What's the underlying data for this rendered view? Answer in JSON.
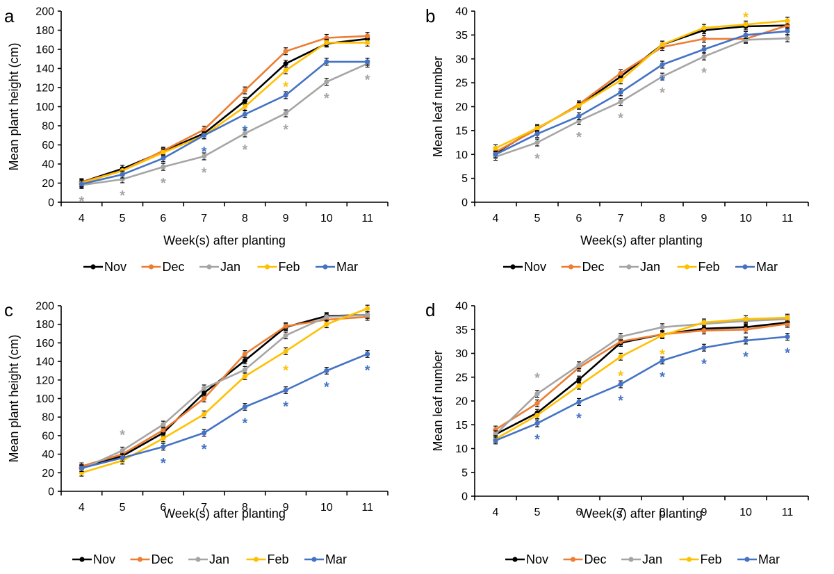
{
  "chart_data": [
    {
      "panel": "a",
      "type": "line",
      "xlabel": "Week(s) after planting",
      "ylabel": "Mean plant height (cm)",
      "categories": [
        "4",
        "5",
        "6",
        "7",
        "8",
        "9",
        "10",
        "11"
      ],
      "ylim": [
        0,
        200
      ],
      "yticks": [
        "0",
        "20",
        "40",
        "60",
        "80",
        "100",
        "120",
        "140",
        "160",
        "180",
        "200"
      ],
      "series": [
        {
          "name": "Nov",
          "color": "#000000",
          "values": [
            21,
            35,
            53,
            72,
            106,
            145,
            166,
            171
          ]
        },
        {
          "name": "Dec",
          "color": "#ED7D31",
          "values": [
            21,
            33,
            54,
            76,
            117,
            158,
            172,
            174
          ]
        },
        {
          "name": "Jan",
          "color": "#A5A5A5",
          "values": [
            18,
            24,
            37,
            48,
            72,
            93,
            126,
            145
          ]
        },
        {
          "name": "Feb",
          "color": "#FFC000",
          "values": [
            20,
            33,
            52,
            70,
            100,
            138,
            167,
            167
          ]
        },
        {
          "name": "Mar",
          "color": "#4472C4",
          "values": [
            19,
            29,
            46,
            70,
            92,
            112,
            147,
            147
          ]
        }
      ],
      "significance": [
        {
          "series": "Jan",
          "category": "4"
        },
        {
          "series": "Jan",
          "category": "5"
        },
        {
          "series": "Jan",
          "category": "6"
        },
        {
          "series": "Jan",
          "category": "7"
        },
        {
          "series": "Jan",
          "category": "8"
        },
        {
          "series": "Jan",
          "category": "9"
        },
        {
          "series": "Jan",
          "category": "10"
        },
        {
          "series": "Jan",
          "category": "11"
        },
        {
          "series": "Mar",
          "category": "7"
        },
        {
          "series": "Mar",
          "category": "8"
        },
        {
          "series": "Feb",
          "category": "9"
        }
      ],
      "significance_symbol": "*",
      "legend": [
        "Nov",
        "Dec",
        "Jan",
        "Feb",
        "Mar"
      ]
    },
    {
      "panel": "b",
      "type": "line",
      "xlabel": "Week(s) after planting",
      "ylabel": "Mean leaf number",
      "categories": [
        "4",
        "5",
        "6",
        "7",
        "8",
        "9",
        "10",
        "11"
      ],
      "ylim": [
        0,
        40
      ],
      "yticks": [
        "0",
        "5",
        "10",
        "15",
        "20",
        "25",
        "30",
        "35",
        "40"
      ],
      "series": [
        {
          "name": "Nov",
          "color": "#000000",
          "values": [
            10.3,
            15.5,
            20.2,
            26.3,
            33.0,
            36.0,
            36.8,
            37.0
          ]
        },
        {
          "name": "Dec",
          "color": "#ED7D31",
          "values": [
            10.5,
            15.3,
            20.5,
            27.0,
            32.5,
            34.2,
            34.2,
            37.0
          ]
        },
        {
          "name": "Jan",
          "color": "#A5A5A5",
          "values": [
            9.5,
            12.5,
            17.0,
            21.0,
            26.3,
            30.5,
            34.0,
            34.3
          ]
        },
        {
          "name": "Feb",
          "color": "#FFC000",
          "values": [
            11.3,
            15.5,
            20.2,
            25.5,
            33.0,
            36.5,
            37.2,
            38.0
          ]
        },
        {
          "name": "Mar",
          "color": "#4472C4",
          "values": [
            10.0,
            14.3,
            18.0,
            23.0,
            28.8,
            32.0,
            35.0,
            35.8
          ]
        }
      ],
      "significance": [
        {
          "series": "Jan",
          "category": "5"
        },
        {
          "series": "Jan",
          "category": "6"
        },
        {
          "series": "Jan",
          "category": "7"
        },
        {
          "series": "Jan",
          "category": "8"
        },
        {
          "series": "Jan",
          "category": "9"
        },
        {
          "series": "Mar",
          "category": "8"
        },
        {
          "series": "Feb",
          "category": "10"
        }
      ],
      "significance_symbol": "*",
      "legend": [
        "Nov",
        "Dec",
        "Jan",
        "Feb",
        "Mar"
      ]
    },
    {
      "panel": "c",
      "type": "line",
      "xlabel": "Week(s) after planting",
      "ylabel": "Mean plant height (cm)",
      "categories": [
        "4",
        "5",
        "6",
        "7",
        "8",
        "9",
        "10",
        "11"
      ],
      "ylim": [
        0,
        200
      ],
      "yticks": [
        "0",
        "20",
        "40",
        "60",
        "80",
        "100",
        "120",
        "140",
        "160",
        "180",
        "200"
      ],
      "series": [
        {
          "name": "Nov",
          "color": "#000000",
          "values": [
            25,
            38,
            63,
            106,
            141,
            177,
            189,
            190
          ]
        },
        {
          "name": "Dec",
          "color": "#ED7D31",
          "values": [
            27,
            40,
            66,
            100,
            148,
            178,
            185,
            188
          ]
        },
        {
          "name": "Jan",
          "color": "#A5A5A5",
          "values": [
            24,
            44,
            72,
            111,
            131,
            168,
            188,
            190
          ]
        },
        {
          "name": "Feb",
          "color": "#FFC000",
          "values": [
            20,
            33,
            57,
            83,
            124,
            151,
            180,
            197
          ]
        },
        {
          "name": "Mar",
          "color": "#4472C4",
          "values": [
            25,
            36,
            48,
            63,
            91,
            109,
            130,
            148
          ]
        }
      ],
      "significance": [
        {
          "series": "Jan",
          "category": "5"
        },
        {
          "series": "Mar",
          "category": "6"
        },
        {
          "series": "Mar",
          "category": "7"
        },
        {
          "series": "Mar",
          "category": "8"
        },
        {
          "series": "Mar",
          "category": "9"
        },
        {
          "series": "Mar",
          "category": "10"
        },
        {
          "series": "Mar",
          "category": "11"
        },
        {
          "series": "Feb",
          "category": "9"
        }
      ],
      "significance_symbol": "*",
      "legend": [
        "Nov",
        "Dec",
        "Jan",
        "Feb",
        "Mar"
      ]
    },
    {
      "panel": "d",
      "type": "line",
      "xlabel": "Week(s) after planting",
      "ylabel": "Mean leaf number",
      "categories": [
        "4",
        "5",
        "6",
        "7",
        "8",
        "9",
        "10",
        "11"
      ],
      "ylim": [
        0,
        40
      ],
      "yticks": [
        "0",
        "5",
        "10",
        "15",
        "20",
        "25",
        "30",
        "35",
        "40"
      ],
      "series": [
        {
          "name": "Nov",
          "color": "#000000",
          "values": [
            13.0,
            17.5,
            24.5,
            32.2,
            34.0,
            35.2,
            35.5,
            36.5
          ]
        },
        {
          "name": "Dec",
          "color": "#ED7D31",
          "values": [
            14.0,
            19.5,
            27.0,
            32.5,
            34.0,
            34.8,
            35.0,
            36.2
          ]
        },
        {
          "name": "Jan",
          "color": "#A5A5A5",
          "values": [
            13.0,
            21.5,
            27.5,
            33.5,
            35.5,
            36.2,
            36.8,
            37.2
          ]
        },
        {
          "name": "Feb",
          "color": "#FFC000",
          "values": [
            12.0,
            17.0,
            23.2,
            29.3,
            33.8,
            36.5,
            37.2,
            37.5
          ]
        },
        {
          "name": "Mar",
          "color": "#4472C4",
          "values": [
            11.7,
            15.3,
            19.8,
            23.5,
            28.5,
            31.2,
            32.7,
            33.5
          ]
        }
      ],
      "significance": [
        {
          "series": "Jan",
          "category": "5"
        },
        {
          "series": "Mar",
          "category": "5"
        },
        {
          "series": "Mar",
          "category": "6"
        },
        {
          "series": "Mar",
          "category": "7"
        },
        {
          "series": "Mar",
          "category": "8"
        },
        {
          "series": "Mar",
          "category": "9"
        },
        {
          "series": "Mar",
          "category": "10"
        },
        {
          "series": "Mar",
          "category": "11"
        },
        {
          "series": "Feb",
          "category": "7"
        },
        {
          "series": "Feb",
          "category": "8"
        }
      ],
      "significance_symbol": "*",
      "legend": [
        "Nov",
        "Dec",
        "Jan",
        "Feb",
        "Mar"
      ]
    }
  ]
}
